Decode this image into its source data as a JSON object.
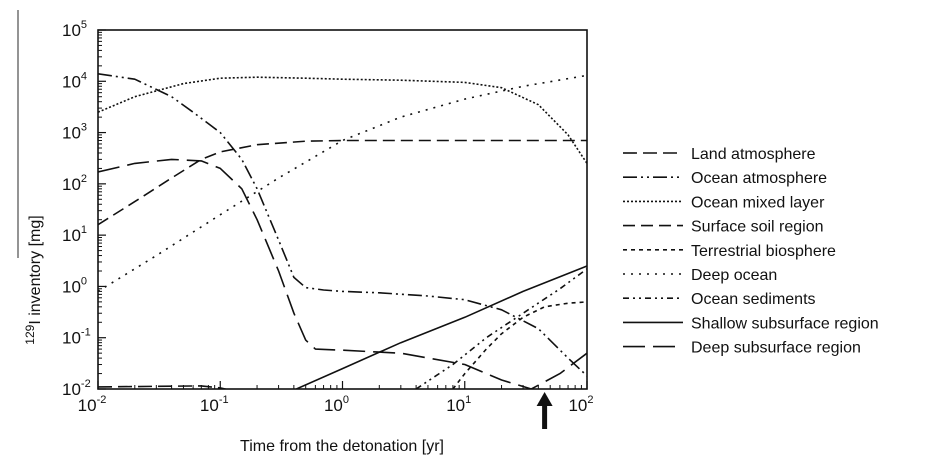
{
  "chart_data": {
    "type": "line",
    "xlabel": "Time from the detonation [yr]",
    "ylabel_superscript": "129",
    "ylabel": "I inventory [mg]",
    "x_scale": "log",
    "y_scale": "log",
    "xlim": [
      0.01,
      100
    ],
    "ylim": [
      0.01,
      100000
    ],
    "x_ticks": [
      {
        "base": "10",
        "exp": "-2"
      },
      {
        "base": "10",
        "exp": "-1"
      },
      {
        "base": "10",
        "exp": "0"
      },
      {
        "base": "10",
        "exp": "1"
      },
      {
        "base": "10",
        "exp": "2"
      }
    ],
    "y_ticks": [
      {
        "base": "10",
        "exp": "-2"
      },
      {
        "base": "10",
        "exp": "-1"
      },
      {
        "base": "10",
        "exp": "0"
      },
      {
        "base": "10",
        "exp": "1"
      },
      {
        "base": "10",
        "exp": "2"
      },
      {
        "base": "10",
        "exp": "3"
      },
      {
        "base": "10",
        "exp": "4"
      },
      {
        "base": "10",
        "exp": "5"
      }
    ],
    "grid": false,
    "legend_position": "right",
    "annotation": {
      "type": "arrow-up",
      "x": 45
    },
    "series": [
      {
        "name": "Land atmosphere",
        "dash": "14,6",
        "points": [
          [
            0.01,
            0.011
          ],
          [
            0.07,
            0.0115
          ],
          [
            0.1,
            0.0105
          ],
          [
            0.12,
            0.0095
          ]
        ]
      },
      {
        "name": "Ocean atmosphere",
        "dash": "14,4,2,4,2,4",
        "points": [
          [
            0.01,
            14000
          ],
          [
            0.02,
            11000
          ],
          [
            0.04,
            5000
          ],
          [
            0.06,
            2500
          ],
          [
            0.1,
            1000
          ],
          [
            0.15,
            300
          ],
          [
            0.2,
            80
          ],
          [
            0.3,
            8
          ],
          [
            0.4,
            1.5
          ],
          [
            0.5,
            0.95
          ],
          [
            0.7,
            0.85
          ],
          [
            1,
            0.8
          ],
          [
            2,
            0.75
          ],
          [
            5,
            0.65
          ],
          [
            10,
            0.55
          ],
          [
            20,
            0.35
          ],
          [
            40,
            0.15
          ],
          [
            70,
            0.04
          ],
          [
            100,
            0.018
          ]
        ]
      },
      {
        "name": "Ocean mixed layer",
        "dash": "2,2",
        "points": [
          [
            0.01,
            2500
          ],
          [
            0.02,
            5000
          ],
          [
            0.05,
            9000
          ],
          [
            0.1,
            11500
          ],
          [
            0.2,
            12000
          ],
          [
            0.5,
            11500
          ],
          [
            1,
            11000
          ],
          [
            3,
            10500
          ],
          [
            10,
            9500
          ],
          [
            20,
            7500
          ],
          [
            40,
            3500
          ],
          [
            70,
            900
          ],
          [
            100,
            250
          ]
        ]
      },
      {
        "name": "Surface soil region",
        "dash": "12,6",
        "points": [
          [
            0.01,
            16
          ],
          [
            0.02,
            45
          ],
          [
            0.04,
            130
          ],
          [
            0.07,
            300
          ],
          [
            0.1,
            420
          ],
          [
            0.2,
            580
          ],
          [
            0.5,
            680
          ],
          [
            1,
            700
          ],
          [
            10,
            700
          ],
          [
            100,
            700
          ]
        ]
      },
      {
        "name": "Terrestrial biosphere",
        "dash": "4,4",
        "points": [
          [
            8,
            0.01
          ],
          [
            10,
            0.02
          ],
          [
            15,
            0.06
          ],
          [
            20,
            0.12
          ],
          [
            30,
            0.25
          ],
          [
            45,
            0.4
          ],
          [
            70,
            0.47
          ],
          [
            100,
            0.5
          ]
        ]
      },
      {
        "name": "Deep ocean",
        "dash": "2,6",
        "points": [
          [
            0.01,
            0.8
          ],
          [
            0.03,
            4
          ],
          [
            0.1,
            25
          ],
          [
            0.3,
            130
          ],
          [
            1,
            700
          ],
          [
            3,
            2000
          ],
          [
            10,
            4500
          ],
          [
            30,
            8000
          ],
          [
            100,
            13000
          ]
        ]
      },
      {
        "name": "Ocean sediments",
        "dash": "6,4,2,4,2,4",
        "points": [
          [
            4,
            0.01
          ],
          [
            8,
            0.03
          ],
          [
            15,
            0.1
          ],
          [
            30,
            0.3
          ],
          [
            60,
            0.9
          ],
          [
            100,
            2.2
          ]
        ]
      },
      {
        "name": "Shallow subsurface region",
        "dash": "",
        "points": [
          [
            0.42,
            0.01
          ],
          [
            1,
            0.025
          ],
          [
            3,
            0.08
          ],
          [
            10,
            0.25
          ],
          [
            30,
            0.8
          ],
          [
            100,
            2.5
          ]
        ]
      },
      {
        "name": "Deep subsurface region",
        "dash": "22,8",
        "points": [
          [
            0.01,
            170
          ],
          [
            0.02,
            250
          ],
          [
            0.04,
            300
          ],
          [
            0.07,
            280
          ],
          [
            0.1,
            200
          ],
          [
            0.15,
            80
          ],
          [
            0.2,
            20
          ],
          [
            0.3,
            2
          ],
          [
            0.4,
            0.3
          ],
          [
            0.5,
            0.09
          ],
          [
            0.6,
            0.06
          ],
          [
            1,
            0.057
          ],
          [
            3,
            0.05
          ],
          [
            10,
            0.03
          ],
          [
            20,
            0.015
          ],
          [
            35,
            0.01
          ],
          [
            60,
            0.02
          ],
          [
            100,
            0.05
          ]
        ]
      }
    ]
  }
}
